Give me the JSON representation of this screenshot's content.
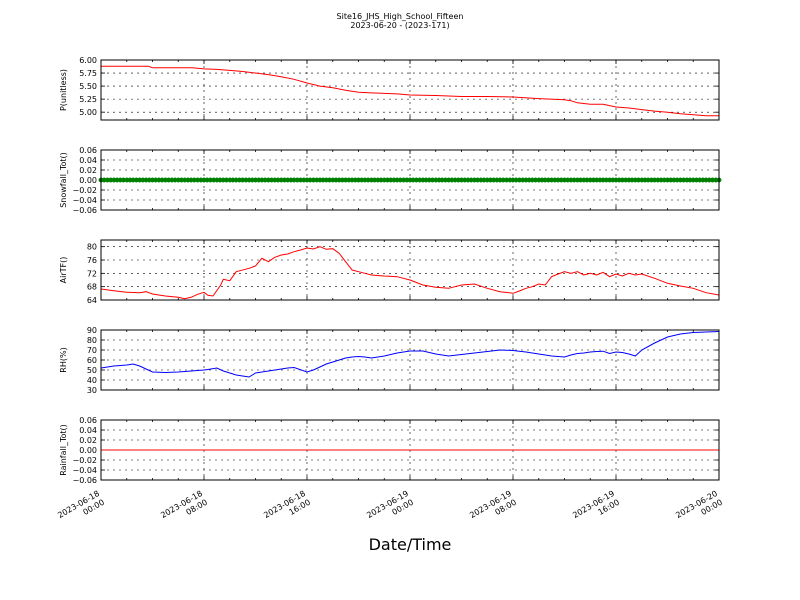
{
  "title": "Site16_JHS_High_School_Fifteen",
  "subtitle": "2023-06-20 - (2023-171)",
  "xlabel": "Date/Time",
  "x_ticks": [
    {
      "l1": "2023-06-18",
      "l2": "00:00",
      "h": 0
    },
    {
      "l1": "2023-06-18",
      "l2": "08:00",
      "h": 8
    },
    {
      "l1": "2023-06-18",
      "l2": "16:00",
      "h": 16
    },
    {
      "l1": "2023-06-19",
      "l2": "00:00",
      "h": 24
    },
    {
      "l1": "2023-06-19",
      "l2": "08:00",
      "h": 32
    },
    {
      "l1": "2023-06-19",
      "l2": "16:00",
      "h": 40
    },
    {
      "l1": "2023-06-20",
      "l2": "00:00",
      "h": 48
    }
  ],
  "x_range": [
    "2023-06-18 00:00",
    "2023-06-20 00:00"
  ],
  "colors": {
    "p": "#ff0000",
    "snow": "#008000",
    "airtf": "#ff0000",
    "rh": "#0000ff",
    "rain": "#ff0000"
  },
  "chart_data": [
    {
      "id": "p",
      "type": "line",
      "ylabel": "P(unitless)",
      "ylim": [
        4.85,
        6.0
      ],
      "yticks": [
        5.0,
        5.25,
        5.5,
        5.75,
        6.0
      ],
      "ytick_labels": [
        "5.00",
        "5.25",
        "5.50",
        "5.75",
        "6.00"
      ],
      "x_hours": [
        0,
        3.7,
        4,
        7.1,
        8,
        9,
        10,
        11,
        12,
        13,
        14,
        15,
        16,
        17,
        18,
        19,
        20,
        21,
        22,
        23,
        24,
        26,
        28,
        30,
        32,
        34,
        36,
        36.5,
        37,
        38,
        39,
        40,
        41,
        42,
        43,
        44,
        45,
        46,
        47,
        48
      ],
      "values": [
        5.88,
        5.88,
        5.85,
        5.85,
        5.83,
        5.82,
        5.8,
        5.78,
        5.75,
        5.72,
        5.68,
        5.63,
        5.56,
        5.5,
        5.47,
        5.42,
        5.38,
        5.37,
        5.36,
        5.35,
        5.33,
        5.32,
        5.3,
        5.3,
        5.29,
        5.26,
        5.24,
        5.22,
        5.18,
        5.15,
        5.15,
        5.1,
        5.08,
        5.05,
        5.02,
        5.0,
        4.97,
        4.95,
        4.93,
        4.93
      ],
      "grid": true
    },
    {
      "id": "snow",
      "type": "line",
      "ylabel": "Snowfall_Tot()",
      "ylim": [
        -0.06,
        0.06
      ],
      "yticks": [
        -0.06,
        -0.04,
        -0.02,
        0.0,
        0.02,
        0.04,
        0.06
      ],
      "ytick_labels": [
        "−0.06",
        "−0.04",
        "−0.02",
        "0.00",
        "0.02",
        "0.04",
        "0.06"
      ],
      "x_hours": [
        0,
        48
      ],
      "values": [
        0.0,
        0.0
      ],
      "markers": true,
      "grid": true
    },
    {
      "id": "airtf",
      "type": "line",
      "ylabel": "AirTF()",
      "ylim": [
        64,
        82
      ],
      "yticks": [
        64,
        68,
        72,
        76,
        80
      ],
      "ytick_labels": [
        "64",
        "68",
        "72",
        "76",
        "80"
      ],
      "x_hours": [
        0,
        1,
        2,
        3,
        3.5,
        4,
        5,
        6,
        6.5,
        7,
        7.5,
        8,
        8.3,
        8.7,
        9.3,
        9.5,
        10,
        10.5,
        10.8,
        11.5,
        12,
        12.5,
        13,
        13.5,
        14,
        14.5,
        15,
        15.5,
        16,
        16.5,
        17,
        17.5,
        18,
        18.5,
        19,
        19.5,
        20,
        20.5,
        21,
        22,
        23,
        24,
        25,
        26,
        27,
        28,
        29,
        30,
        31,
        32,
        32.5,
        33,
        33.5,
        34,
        34.5,
        35,
        35.5,
        36,
        36.5,
        37,
        37.5,
        38,
        38.5,
        39,
        39.5,
        40,
        40.5,
        41,
        41.5,
        42,
        43,
        44,
        45,
        46,
        47,
        48
      ],
      "values": [
        67.3,
        66.8,
        66.3,
        66.2,
        66.5,
        65.8,
        65.2,
        64.8,
        64.4,
        64.8,
        65.7,
        66.3,
        65.4,
        65.2,
        68.5,
        70.2,
        69.8,
        72.5,
        72.8,
        73.5,
        74.2,
        76.5,
        75.5,
        76.8,
        77.5,
        77.8,
        78.5,
        79.0,
        79.6,
        79.3,
        80.0,
        79.2,
        79.4,
        78.0,
        75.5,
        73.0,
        72.5,
        72.0,
        71.5,
        71.2,
        71.0,
        70.0,
        68.5,
        67.8,
        67.5,
        68.5,
        68.8,
        67.5,
        66.5,
        66.0,
        66.7,
        67.5,
        68.0,
        68.8,
        68.5,
        71.0,
        71.8,
        72.5,
        72.0,
        72.5,
        71.5,
        72.0,
        71.5,
        72.3,
        71.0,
        71.8,
        71.2,
        72.0,
        71.5,
        71.8,
        70.5,
        69.0,
        68.2,
        67.5,
        66.2,
        65.5
      ],
      "grid": true
    },
    {
      "id": "rh",
      "type": "line",
      "ylabel": "RH(%)",
      "ylim": [
        30,
        90
      ],
      "yticks": [
        30,
        40,
        50,
        60,
        70,
        80,
        90
      ],
      "ytick_labels": [
        "30",
        "40",
        "50",
        "60",
        "70",
        "80",
        "90"
      ],
      "x_hours": [
        0,
        1,
        2,
        2.5,
        3,
        4,
        5,
        6,
        7,
        8,
        8.3,
        9,
        9.5,
        10,
        10.5,
        11,
        11.5,
        12,
        12.5,
        13,
        13.5,
        14,
        14.5,
        15,
        16,
        16.5,
        17,
        17.5,
        18,
        18.5,
        19,
        19.5,
        20,
        20.5,
        21,
        22,
        23,
        24,
        25,
        26,
        27,
        28,
        29,
        30,
        31,
        32,
        33,
        34,
        35,
        36,
        36.5,
        37,
        37.5,
        38,
        38.5,
        39,
        39.5,
        40,
        40.5,
        41,
        41.5,
        42,
        43,
        44,
        45,
        46,
        47,
        48
      ],
      "values": [
        52,
        54,
        55,
        56,
        54,
        48,
        47.5,
        48,
        49,
        50,
        50.5,
        52,
        49,
        47,
        45,
        44,
        43,
        47,
        48,
        49,
        50,
        51,
        52,
        52.5,
        48,
        50,
        53,
        56,
        58,
        60,
        62,
        63,
        63.5,
        63,
        62,
        64,
        67,
        69,
        69,
        66,
        64,
        65.5,
        67,
        68.5,
        70,
        69.5,
        68,
        66,
        64,
        63,
        65,
        66.5,
        67,
        68,
        68.5,
        68.8,
        66.5,
        68,
        67.5,
        66,
        64,
        70,
        77,
        83,
        86,
        87.5,
        88,
        88.5
      ],
      "grid": true
    },
    {
      "id": "rain",
      "type": "line",
      "ylabel": "Rainfall_Tot()",
      "ylim": [
        -0.06,
        0.06
      ],
      "yticks": [
        -0.06,
        -0.04,
        -0.02,
        0.0,
        0.02,
        0.04,
        0.06
      ],
      "ytick_labels": [
        "−0.06",
        "−0.04",
        "−0.02",
        "0.00",
        "0.02",
        "0.04",
        "0.06"
      ],
      "x_hours": [
        0,
        48
      ],
      "values": [
        0.0,
        0.0
      ],
      "grid": true
    }
  ]
}
